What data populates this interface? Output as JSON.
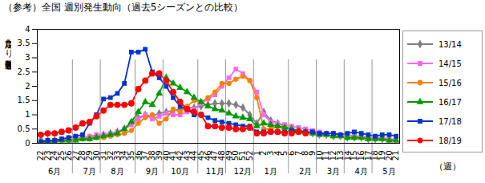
{
  "chart_data": {
    "type": "line",
    "title": "（参考）全国 週別発生動向（過去5シーズンとの比較）",
    "y_label": "定点当たり患者報告数",
    "x_label": "（週）",
    "categories": [
      "22",
      "23",
      "24",
      "25",
      "26",
      "27",
      "28",
      "29",
      "30",
      "31",
      "32",
      "33",
      "34",
      "35",
      "36",
      "37",
      "38",
      "39",
      "40",
      "41",
      "42",
      "43",
      "44",
      "45",
      "46",
      "47",
      "48",
      "49",
      "50",
      "51",
      "52",
      "1",
      "2",
      "3",
      "4",
      "5",
      "6",
      "7",
      "8",
      "9",
      "10",
      "11",
      "12",
      "13",
      "14",
      "15",
      "16",
      "17",
      "18",
      "19",
      "20",
      "21"
    ],
    "x_groups": [
      {
        "label": "6月",
        "from": "22",
        "to": "26"
      },
      {
        "label": "7月",
        "from": "27",
        "to": "30"
      },
      {
        "label": "8月",
        "from": "31",
        "to": "35"
      },
      {
        "label": "9月",
        "from": "36",
        "to": "39"
      },
      {
        "label": "10月",
        "from": "40",
        "to": "44"
      },
      {
        "label": "11月",
        "from": "45",
        "to": "48"
      },
      {
        "label": "12月",
        "from": "49",
        "to": "52"
      },
      {
        "label": "1月",
        "from": "1",
        "to": "5"
      },
      {
        "label": "2月",
        "from": "6",
        "to": "9"
      },
      {
        "label": "3月",
        "from": "10",
        "to": "13"
      },
      {
        "label": "4月",
        "from": "14",
        "to": "17"
      },
      {
        "label": "5月",
        "from": "18",
        "to": "21"
      }
    ],
    "ylim": [
      0,
      4
    ],
    "yticks": [
      0,
      0.5,
      1,
      1.5,
      2,
      2.5,
      3,
      3.5,
      4
    ],
    "legend": "right",
    "series": [
      {
        "name": "13/14",
        "color": "#808080",
        "marker": "diamond",
        "values": [
          0.1,
          0.1,
          0.1,
          0.1,
          0.15,
          0.15,
          0.2,
          0.2,
          0.25,
          0.3,
          0.35,
          0.4,
          0.5,
          0.7,
          0.9,
          1.0,
          0.95,
          1.05,
          1.1,
          1.15,
          1.2,
          1.25,
          1.25,
          1.3,
          1.35,
          1.4,
          1.4,
          1.4,
          1.35,
          1.25,
          1.0,
          0.7,
          1.1,
          0.8,
          0.7,
          0.6,
          0.5,
          0.45,
          0.4,
          0.35,
          0.3,
          0.3,
          0.25,
          0.25,
          0.2,
          0.2,
          0.2,
          0.15,
          0.15,
          0.15,
          0.1,
          0.1
        ]
      },
      {
        "name": "14/15",
        "color": "#ff66ff",
        "marker": "square",
        "values": [
          0.1,
          0.1,
          0.1,
          0.15,
          0.15,
          0.2,
          0.2,
          0.25,
          0.3,
          0.3,
          0.35,
          0.4,
          0.5,
          0.65,
          0.85,
          1.0,
          0.85,
          0.95,
          1.05,
          1.0,
          1.0,
          1.1,
          1.2,
          1.4,
          1.55,
          1.7,
          2.0,
          2.3,
          2.6,
          2.45,
          2.2,
          1.8,
          1.0,
          0.75,
          0.7,
          0.65,
          0.6,
          0.55,
          0.5,
          0.45,
          0.4,
          0.35,
          0.35,
          0.3,
          0.3,
          0.25,
          0.25,
          0.2,
          0.2,
          0.2,
          0.15,
          0.15
        ]
      },
      {
        "name": "15/16",
        "color": "#ff8000",
        "marker": "circle",
        "values": [
          0.05,
          0.05,
          0.1,
          0.1,
          0.1,
          0.15,
          0.15,
          0.15,
          0.2,
          0.2,
          0.25,
          0.3,
          0.35,
          0.45,
          0.7,
          0.9,
          1.0,
          0.7,
          0.85,
          1.2,
          1.1,
          1.3,
          1.5,
          1.45,
          1.6,
          1.8,
          2.1,
          2.1,
          2.25,
          2.35,
          2.2,
          1.6,
          0.5,
          0.5,
          0.6,
          0.55,
          0.5,
          0.45,
          0.4,
          0.35,
          0.3,
          0.3,
          0.25,
          0.25,
          0.2,
          0.2,
          0.2,
          0.15,
          0.15,
          0.15,
          0.1,
          0.1
        ]
      },
      {
        "name": "16/17",
        "color": "#009900",
        "marker": "triangle",
        "values": [
          0.05,
          0.05,
          0.05,
          0.1,
          0.1,
          0.1,
          0.15,
          0.15,
          0.2,
          0.25,
          0.3,
          0.35,
          0.5,
          0.75,
          1.1,
          1.45,
          1.35,
          1.75,
          2.3,
          2.1,
          1.95,
          1.8,
          1.6,
          1.45,
          1.3,
          1.2,
          1.15,
          1.05,
          0.95,
          0.9,
          0.85,
          0.6,
          0.7,
          0.65,
          0.6,
          0.55,
          0.5,
          0.45,
          0.4,
          0.35,
          0.3,
          0.3,
          0.25,
          0.25,
          0.2,
          0.2,
          0.2,
          0.15,
          0.15,
          0.15,
          0.1,
          0.1
        ]
      },
      {
        "name": "17/18",
        "color": "#0033cc",
        "marker": "square",
        "values": [
          0.05,
          0.1,
          0.1,
          0.15,
          0.2,
          0.25,
          0.3,
          0.7,
          1.0,
          1.55,
          1.6,
          1.75,
          2.1,
          3.2,
          3.2,
          3.3,
          2.5,
          2.3,
          2.0,
          1.6,
          1.3,
          1.2,
          1.0,
          1.0,
          0.9,
          0.8,
          0.75,
          0.7,
          0.65,
          0.6,
          0.6,
          0.4,
          0.4,
          0.4,
          0.4,
          0.4,
          0.45,
          0.4,
          0.4,
          0.4,
          0.35,
          0.35,
          0.35,
          0.3,
          0.35,
          0.4,
          0.35,
          0.3,
          0.25,
          0.3,
          0.3,
          0.25
        ]
      },
      {
        "name": "18/19",
        "color": "#ff0000",
        "marker": "circle",
        "values": [
          0.3,
          0.35,
          0.35,
          0.4,
          0.45,
          0.55,
          0.7,
          0.75,
          0.95,
          1.15,
          1.35,
          1.35,
          1.35,
          1.4,
          1.9,
          2.2,
          2.45,
          2.45,
          2.2,
          1.8,
          1.45,
          1.2,
          1.1,
          1.0,
          0.6,
          0.6,
          0.55,
          0.55,
          0.5,
          0.5,
          0.55,
          0.35,
          0.35,
          0.4,
          0.4,
          0.35,
          0.35,
          0.4,
          0.35,
          null,
          null,
          null,
          null,
          null,
          null,
          null,
          null,
          null,
          null,
          null,
          null,
          null
        ]
      }
    ]
  }
}
